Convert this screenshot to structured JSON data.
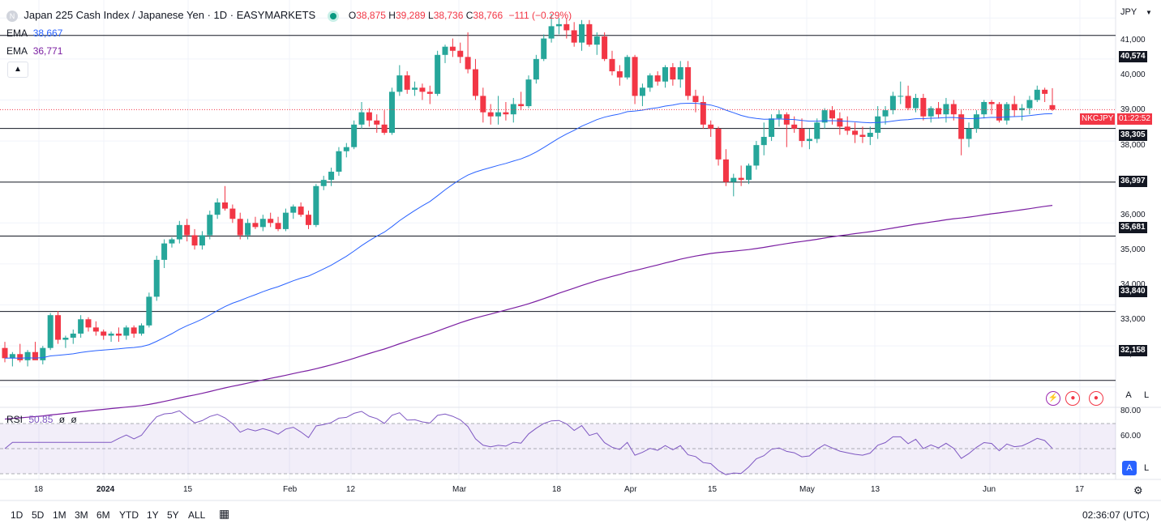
{
  "header": {
    "symbol_badge": "N",
    "title": "Japan 225 Cash Index / Japanese Yen · 1D · EASYMARKETS",
    "ohlc": {
      "o_label": "O",
      "o": "38,875",
      "h_label": "H",
      "h": "39,289",
      "l_label": "L",
      "l": "38,736",
      "c_label": "C",
      "c": "38,766",
      "change": "−111 (−0.29%)"
    },
    "currency": "JPY"
  },
  "indicators": [
    {
      "label": "EMA",
      "value": "38,667",
      "color": "#2962ff"
    },
    {
      "label": "EMA",
      "value": "36,771",
      "color": "#7b1fa2"
    }
  ],
  "rsi": {
    "label": "RSI",
    "value": "50.85",
    "extra1": "ø",
    "extra2": "ø",
    "ticks": [
      "80.00",
      "60.00"
    ],
    "color": "#7e57c2"
  },
  "price_scale": {
    "ticks": [
      "41,000",
      "40,000",
      "39,000",
      "38,000",
      "36,000",
      "35,000",
      "34,000",
      "33,000",
      "32,000"
    ],
    "levels": [
      {
        "label": "40,574",
        "value": 40574
      },
      {
        "label": "38,305",
        "value": 38305
      },
      {
        "label": "36,997",
        "value": 36997
      },
      {
        "label": "35,681",
        "value": 35681
      },
      {
        "label": "33,840",
        "value": 33840
      },
      {
        "label": "32,158",
        "value": 32158
      }
    ],
    "current_symbol": "NKCJPY",
    "current_time": "01:22:52"
  },
  "time_axis": [
    "18",
    "2024",
    "15",
    "Feb",
    "12",
    "Mar",
    "18",
    "Apr",
    "15",
    "May",
    "13",
    "Jun",
    "17"
  ],
  "timeframes": [
    "1D",
    "5D",
    "1M",
    "3M",
    "6M",
    "YTD",
    "1Y",
    "5Y",
    "ALL"
  ],
  "clock": "02:36:07 (UTC)",
  "scale_buttons": {
    "auto": "A",
    "log": "L"
  },
  "colors": {
    "up": "#26a69a",
    "down": "#f23645",
    "ema_fast": "#2962ff",
    "ema_slow": "#7b1fa2"
  },
  "chart_data": {
    "type": "candlestick",
    "title": "Japan 225 Cash Index / Japanese Yen · 1D · EASYMARKETS",
    "ylim": [
      31600,
      41400
    ],
    "candles": [
      [
        32950,
        33100,
        32600,
        32700
      ],
      [
        32700,
        32850,
        32500,
        32800
      ],
      [
        32800,
        33050,
        32600,
        32650
      ],
      [
        32650,
        32900,
        32500,
        32850
      ],
      [
        32850,
        33100,
        32700,
        32650
      ],
      [
        32650,
        33000,
        32550,
        32950
      ],
      [
        32950,
        33800,
        32900,
        33750
      ],
      [
        33750,
        33850,
        33050,
        33150
      ],
      [
        33150,
        33250,
        32950,
        33200
      ],
      [
        33200,
        33400,
        33050,
        33300
      ],
      [
        33300,
        33750,
        33200,
        33650
      ],
      [
        33650,
        33700,
        33350,
        33450
      ],
      [
        33450,
        33600,
        33250,
        33350
      ],
      [
        33350,
        33400,
        33150,
        33250
      ],
      [
        33250,
        33350,
        33100,
        33300
      ],
      [
        33300,
        33450,
        33100,
        33250
      ],
      [
        33250,
        33500,
        33150,
        33450
      ],
      [
        33450,
        33500,
        33200,
        33300
      ],
      [
        33300,
        33550,
        33250,
        33500
      ],
      [
        33500,
        34300,
        33450,
        34200
      ],
      [
        34200,
        35200,
        34100,
        35100
      ],
      [
        35100,
        35600,
        34900,
        35500
      ],
      [
        35500,
        35650,
        35400,
        35600
      ],
      [
        35600,
        36050,
        35500,
        35950
      ],
      [
        35950,
        36100,
        35550,
        35700
      ],
      [
        35700,
        35850,
        35350,
        35450
      ],
      [
        35450,
        35800,
        35350,
        35700
      ],
      [
        35700,
        36300,
        35600,
        36200
      ],
      [
        36200,
        36600,
        36100,
        36500
      ],
      [
        36500,
        36900,
        36300,
        36350
      ],
      [
        36350,
        36450,
        36000,
        36100
      ],
      [
        36100,
        36250,
        35600,
        35700
      ],
      [
        35700,
        36100,
        35600,
        36000
      ],
      [
        36000,
        36150,
        35850,
        35900
      ],
      [
        35900,
        36200,
        35800,
        36100
      ],
      [
        36100,
        36250,
        35900,
        36000
      ],
      [
        36000,
        36150,
        35800,
        35850
      ],
      [
        35850,
        36350,
        35800,
        36250
      ],
      [
        36250,
        36450,
        36100,
        36400
      ],
      [
        36400,
        36500,
        36150,
        36200
      ],
      [
        36200,
        36300,
        35850,
        35950
      ],
      [
        35950,
        36950,
        35900,
        36900
      ],
      [
        36900,
        37150,
        36800,
        37050
      ],
      [
        37050,
        37350,
        36900,
        37250
      ],
      [
        37250,
        37850,
        37150,
        37750
      ],
      [
        37750,
        37950,
        37600,
        37850
      ],
      [
        37850,
        38500,
        37800,
        38400
      ],
      [
        38400,
        38950,
        38300,
        38700
      ],
      [
        38700,
        38800,
        38350,
        38500
      ],
      [
        38500,
        38650,
        38200,
        38400
      ],
      [
        38400,
        38750,
        38150,
        38200
      ],
      [
        38200,
        39300,
        38150,
        39200
      ],
      [
        39200,
        39850,
        39100,
        39600
      ],
      [
        39600,
        39700,
        39150,
        39250
      ],
      [
        39250,
        39450,
        39100,
        39300
      ],
      [
        39300,
        39400,
        39000,
        39200
      ],
      [
        39200,
        39350,
        38900,
        39150
      ],
      [
        39150,
        40200,
        39100,
        40100
      ],
      [
        40100,
        40350,
        39900,
        40300
      ],
      [
        40300,
        40500,
        40050,
        40200
      ],
      [
        40200,
        40400,
        39900,
        40050
      ],
      [
        40050,
        40650,
        39650,
        39750
      ],
      [
        39750,
        40000,
        39000,
        39100
      ],
      [
        39100,
        39300,
        38450,
        38700
      ],
      [
        38700,
        38900,
        38400,
        38600
      ],
      [
        38600,
        39100,
        38400,
        38700
      ],
      [
        38700,
        38950,
        38500,
        38650
      ],
      [
        38650,
        39050,
        38450,
        38900
      ],
      [
        38900,
        39200,
        38750,
        38850
      ],
      [
        38850,
        39600,
        38800,
        39500
      ],
      [
        39500,
        40100,
        39400,
        40000
      ],
      [
        40000,
        40600,
        39950,
        40500
      ],
      [
        40500,
        41100,
        40400,
        40800
      ],
      [
        40800,
        41000,
        40600,
        40850
      ],
      [
        40850,
        41000,
        40500,
        40700
      ],
      [
        40700,
        40900,
        40300,
        40400
      ],
      [
        40400,
        40950,
        40200,
        40850
      ],
      [
        40850,
        40950,
        40300,
        40350
      ],
      [
        40350,
        40650,
        40100,
        40550
      ],
      [
        40550,
        40650,
        39950,
        40000
      ],
      [
        40000,
        40200,
        39600,
        39700
      ],
      [
        39700,
        39850,
        39350,
        39550
      ],
      [
        39550,
        40100,
        39500,
        40050
      ],
      [
        40050,
        40100,
        38900,
        39100
      ],
      [
        39100,
        39400,
        38850,
        39300
      ],
      [
        39300,
        39650,
        39200,
        39600
      ],
      [
        39600,
        39700,
        39350,
        39450
      ],
      [
        39450,
        39850,
        39300,
        39800
      ],
      [
        39800,
        39900,
        39350,
        39500
      ],
      [
        39500,
        39950,
        39300,
        39800
      ],
      [
        39800,
        39950,
        39000,
        39100
      ],
      [
        39100,
        39250,
        38700,
        38950
      ],
      [
        38950,
        39100,
        38300,
        38400
      ],
      [
        38400,
        38500,
        38100,
        38300
      ],
      [
        38300,
        38350,
        37400,
        37550
      ],
      [
        37550,
        37800,
        36900,
        37000
      ],
      [
        37000,
        37200,
        36650,
        37100
      ],
      [
        37100,
        37400,
        36900,
        37050
      ],
      [
        37050,
        37450,
        36950,
        37400
      ],
      [
        37400,
        38000,
        37300,
        37900
      ],
      [
        37900,
        38450,
        37650,
        38100
      ],
      [
        38100,
        38650,
        38000,
        38550
      ],
      [
        38550,
        38750,
        38350,
        38650
      ],
      [
        38650,
        38700,
        37850,
        38400
      ],
      [
        38400,
        38600,
        38200,
        38300
      ],
      [
        38300,
        38550,
        37850,
        38000
      ],
      [
        38000,
        38300,
        37800,
        38050
      ],
      [
        38050,
        38550,
        37950,
        38450
      ],
      [
        38450,
        38800,
        38300,
        38750
      ],
      [
        38750,
        38850,
        38400,
        38550
      ],
      [
        38550,
        38700,
        38150,
        38350
      ],
      [
        38350,
        38600,
        38150,
        38250
      ],
      [
        38250,
        38450,
        37950,
        38150
      ],
      [
        38150,
        38350,
        37950,
        38100
      ],
      [
        38100,
        38350,
        37900,
        38200
      ],
      [
        38200,
        38850,
        38050,
        38600
      ],
      [
        38600,
        38850,
        38400,
        38750
      ],
      [
        38750,
        39200,
        38650,
        39100
      ],
      [
        39100,
        39450,
        38900,
        39100
      ],
      [
        39100,
        39350,
        38750,
        38800
      ],
      [
        38800,
        39150,
        38700,
        39050
      ],
      [
        39050,
        39150,
        38500,
        38600
      ],
      [
        38600,
        38850,
        38450,
        38800
      ],
      [
        38800,
        38950,
        38550,
        38650
      ],
      [
        38650,
        39050,
        38450,
        38900
      ],
      [
        38900,
        39000,
        38500,
        38650
      ],
      [
        38650,
        38750,
        37650,
        38050
      ],
      [
        38050,
        38450,
        37850,
        38300
      ],
      [
        38300,
        38750,
        38200,
        38650
      ],
      [
        38650,
        39000,
        38550,
        38950
      ],
      [
        38950,
        39000,
        38650,
        38900
      ],
      [
        38900,
        38950,
        38450,
        38500
      ],
      [
        38500,
        38950,
        38400,
        38900
      ],
      [
        38900,
        39100,
        38600,
        38750
      ],
      [
        38750,
        38900,
        38500,
        38800
      ],
      [
        38800,
        39100,
        38650,
        39000
      ],
      [
        39000,
        39350,
        38950,
        39250
      ],
      [
        39250,
        39300,
        38950,
        39150
      ],
      [
        38875,
        39289,
        38736,
        38766
      ]
    ],
    "ema_fast_label": "EMA 38,667",
    "ema_slow_label": "EMA 36,771",
    "rsi_value": "50.85"
  }
}
